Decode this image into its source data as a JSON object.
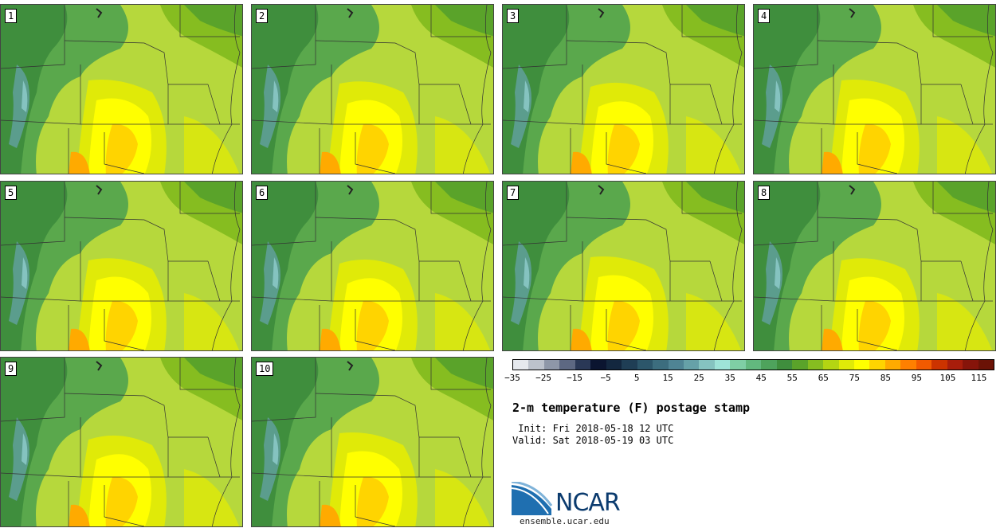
{
  "panels": [
    "1",
    "2",
    "3",
    "4",
    "5",
    "6",
    "7",
    "8",
    "9",
    "10"
  ],
  "colorbar": {
    "colors": [
      "#e6e9ee",
      "#bcc2cc",
      "#8e97a8",
      "#5d6882",
      "#2a3856",
      "#0b1530",
      "#13273f",
      "#1f3e55",
      "#2c566a",
      "#3c6d7e",
      "#4f8494",
      "#66a1a8",
      "#85c3c0",
      "#9ee3d8",
      "#7fcfa5",
      "#62b87e",
      "#4ea35c",
      "#3f8e3d",
      "#5aa32a",
      "#86bd20",
      "#b4d512",
      "#e0ea08",
      "#ffff00",
      "#ffd400",
      "#ffaa00",
      "#ff8000",
      "#f25a00",
      "#cc3300",
      "#a81d0b",
      "#86140a",
      "#6b1206"
    ],
    "ticks": [
      "−35",
      "−25",
      "−15",
      "−5",
      "5",
      "15",
      "25",
      "35",
      "45",
      "55",
      "65",
      "75",
      "85",
      "95",
      "105",
      "115"
    ]
  },
  "title": "2-m temperature (F) postage stamp",
  "init": " Init: Fri 2018-05-18 12 UTC",
  "valid": "Valid: Sat 2018-05-19 03 UTC",
  "logo_text": "NCAR",
  "site": "ensemble.ucar.edu"
}
